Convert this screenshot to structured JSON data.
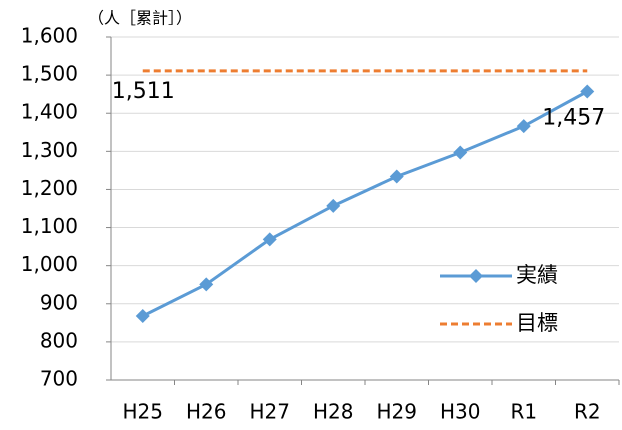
{
  "chart_data": {
    "type": "line",
    "y_axis_label": "（人［累計］）",
    "categories": [
      "H25",
      "H26",
      "H27",
      "H28",
      "H29",
      "H30",
      "R1",
      "R2"
    ],
    "series": [
      {
        "name": "実績",
        "color": "#5b9bd5",
        "values": [
          868,
          951,
          1069,
          1157,
          1234,
          1297,
          1366,
          1457
        ],
        "value_labels": [
          null,
          null,
          null,
          null,
          null,
          null,
          null,
          "1,457"
        ],
        "label_color": "#000000",
        "marker": "diamond"
      },
      {
        "name": "目標",
        "color": "#ed7d31",
        "values": [
          1511,
          1511,
          1511,
          1511,
          1511,
          1511,
          1511,
          1511
        ],
        "value_labels": [
          "1,511",
          null,
          null,
          null,
          null,
          null,
          null,
          null
        ],
        "label_color": "#c00000",
        "dashed": true
      }
    ],
    "ylim": [
      700,
      1600
    ],
    "yticks": [
      700,
      800,
      900,
      {
        "value": 1000,
        "label": "1,000"
      },
      {
        "value": 1100,
        "label": "1,100"
      },
      {
        "value": 1200,
        "label": "1,200"
      },
      {
        "value": 1300,
        "label": "1,300"
      },
      {
        "value": 1400,
        "label": "1,400"
      },
      {
        "value": 1500,
        "label": "1,500"
      },
      {
        "value": 1600,
        "label": "1,600"
      }
    ],
    "grid": true,
    "legend": "lower right"
  }
}
